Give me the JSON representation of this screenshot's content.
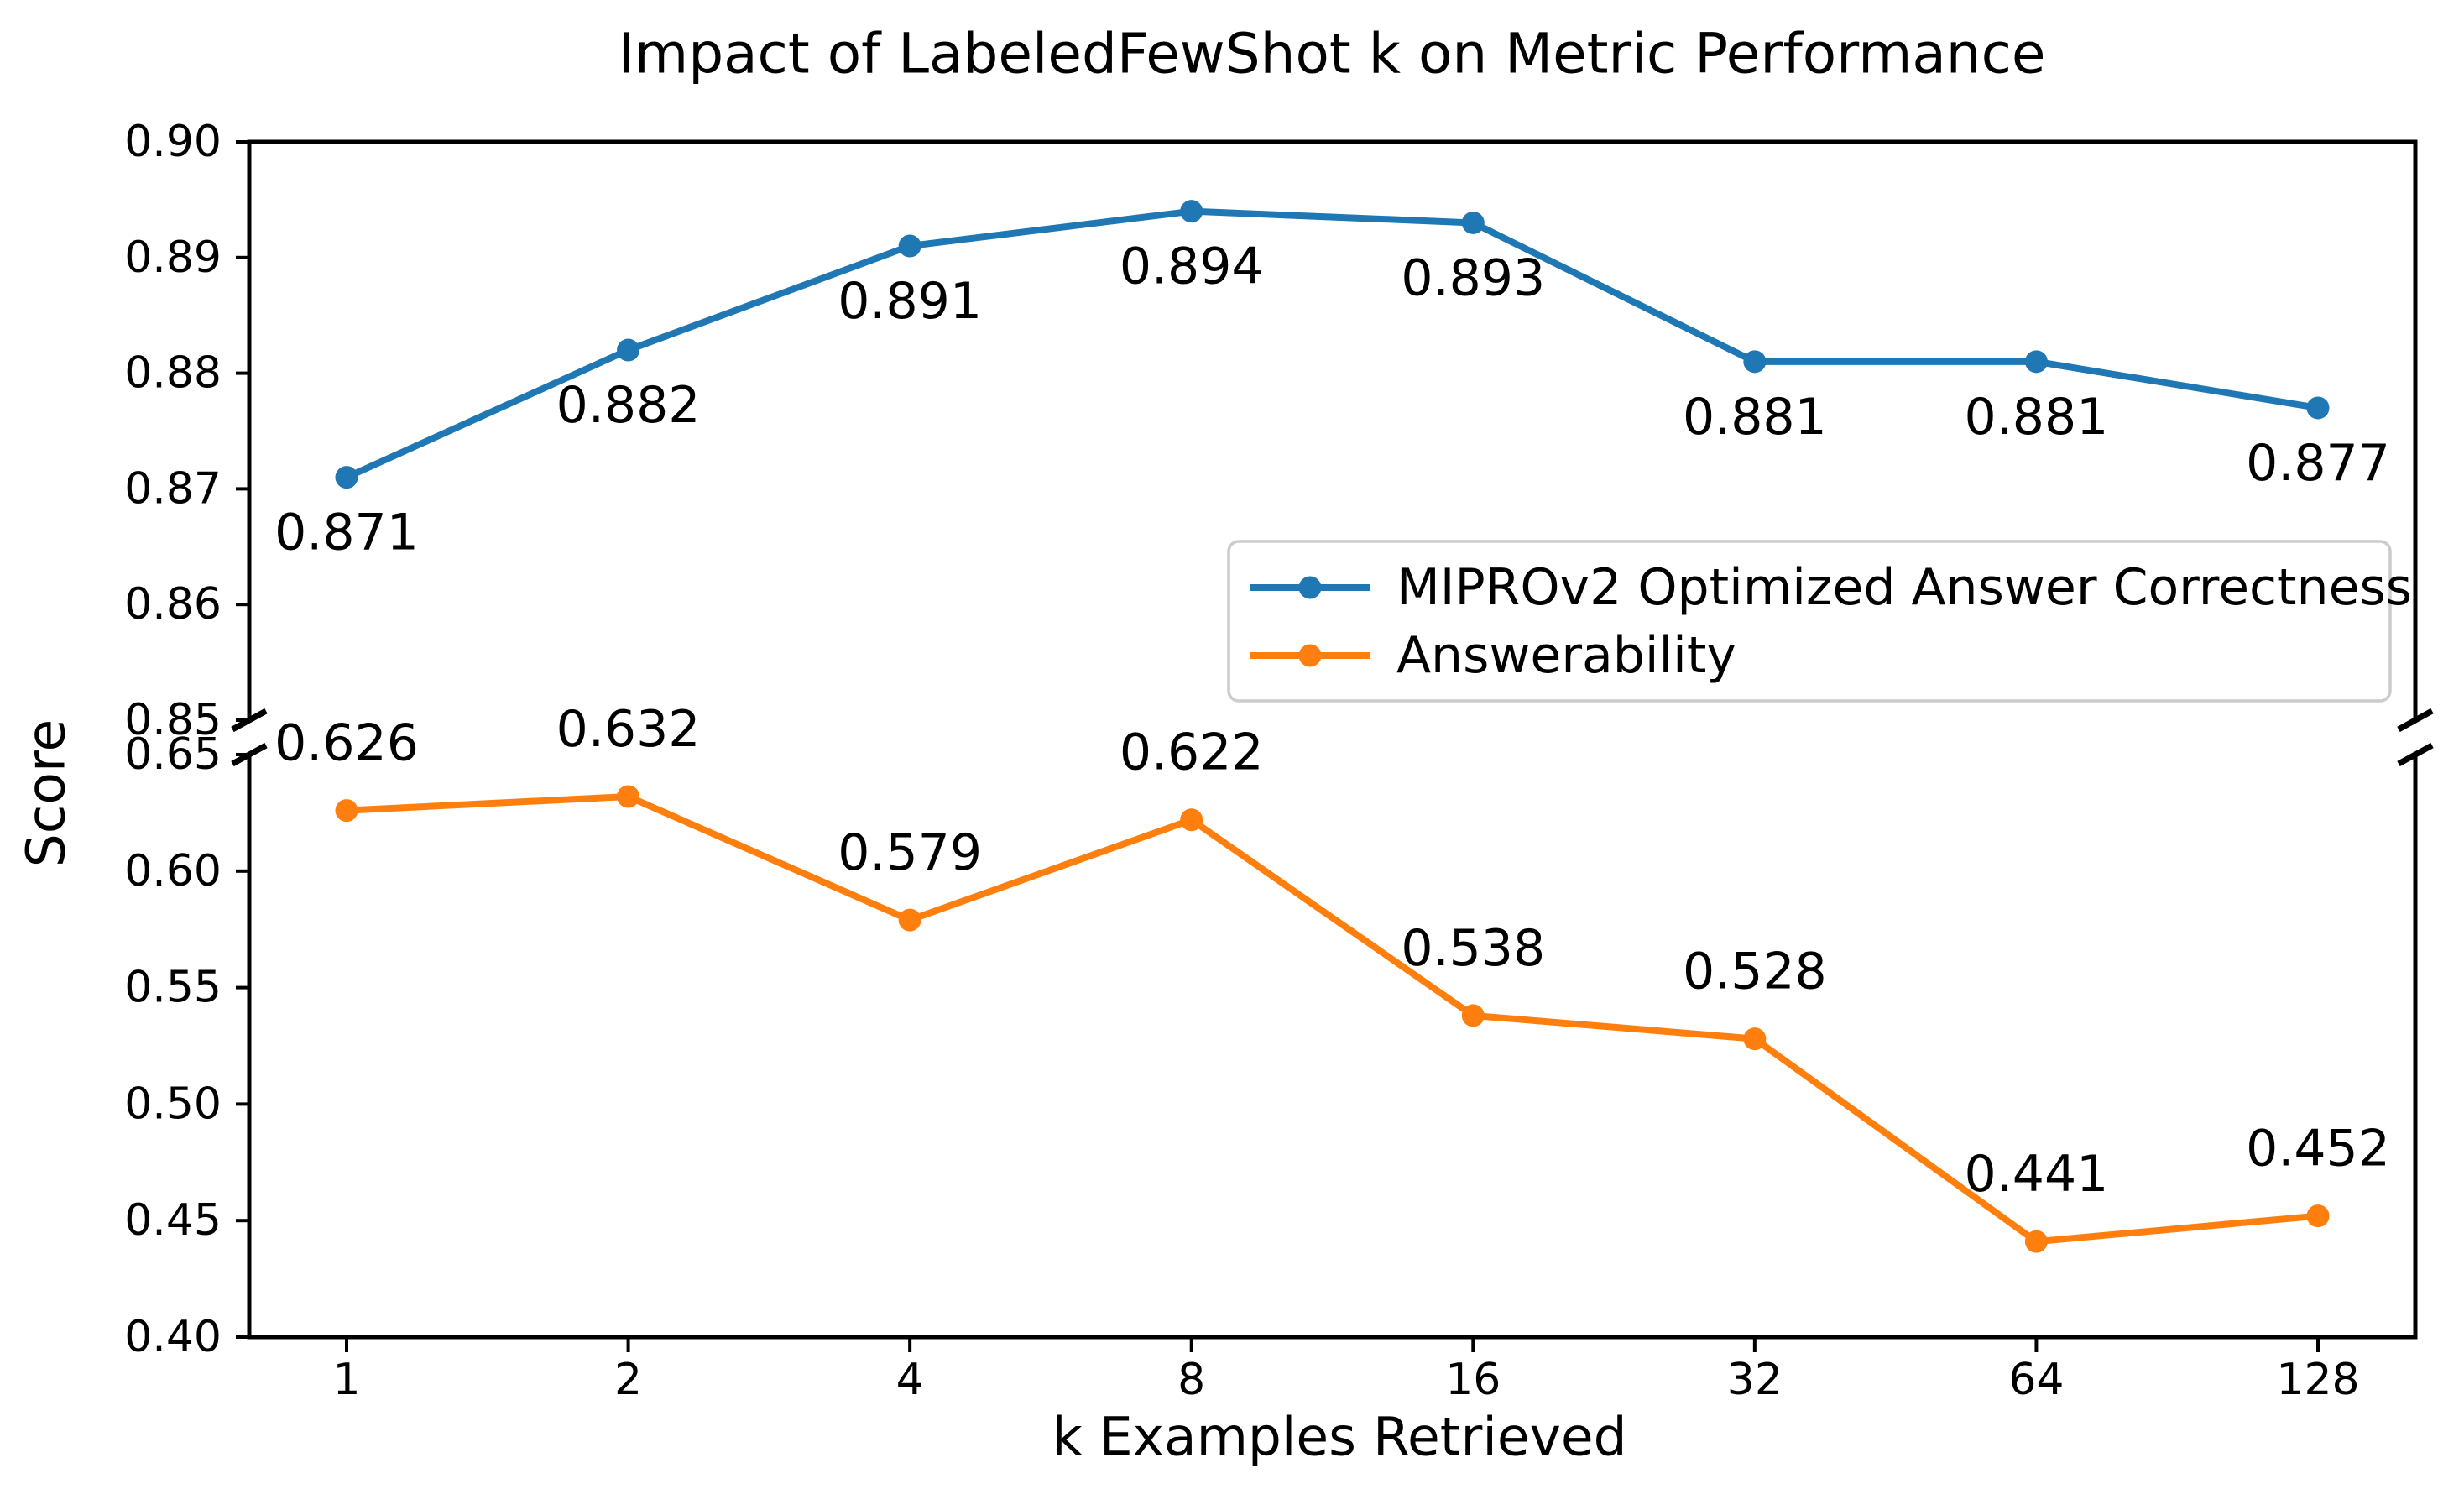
{
  "figure": {
    "title": "Impact of LabeledFewShot k on Metric Performance",
    "background": "#ffffff",
    "text_color": "#000000"
  },
  "chart_data": {
    "type": "line",
    "title": "Impact of LabeledFewShot k on Metric Performance",
    "xlabel": "k Examples Retrieved",
    "ylabel": "Score",
    "categories": [
      "1",
      "2",
      "4",
      "8",
      "16",
      "32",
      "64",
      "128"
    ],
    "broken_y_axis": true,
    "grid": false,
    "series": [
      {
        "name": "MIPROv2 Optimized Answer Correctness",
        "color": "#1f77b4",
        "marker": "circle-icon",
        "segment": "top",
        "value_label_position": "below",
        "values": [
          0.871,
          0.882,
          0.891,
          0.894,
          0.893,
          0.881,
          0.881,
          0.877
        ],
        "value_labels": [
          "0.871",
          "0.882",
          "0.891",
          "0.894",
          "0.893",
          "0.881",
          "0.881",
          "0.877"
        ]
      },
      {
        "name": "Answerability",
        "color": "#ff7f0e",
        "marker": "circle-icon",
        "segment": "bottom",
        "value_label_position": "above",
        "values": [
          0.626,
          0.632,
          0.579,
          0.622,
          0.538,
          0.528,
          0.441,
          0.452
        ],
        "value_labels": [
          "0.626",
          "0.632",
          "0.579",
          "0.622",
          "0.538",
          "0.528",
          "0.441",
          "0.452"
        ]
      }
    ],
    "y_segments": {
      "top": {
        "min": 0.85,
        "max": 0.9,
        "ticks": [
          0.9,
          0.89,
          0.88,
          0.87,
          0.86,
          0.85
        ],
        "tick_labels": [
          "0.90",
          "0.89",
          "0.88",
          "0.87",
          "0.86",
          "0.85"
        ]
      },
      "bottom": {
        "min": 0.4,
        "max": 0.65,
        "ticks": [
          0.65,
          0.6,
          0.55,
          0.5,
          0.45,
          0.4
        ],
        "tick_labels": [
          "0.65",
          "0.60",
          "0.55",
          "0.50",
          "0.45",
          "0.40"
        ]
      }
    },
    "legend": {
      "position": "center-right",
      "entries": [
        "MIPROv2 Optimized Answer Correctness",
        "Answerability"
      ]
    },
    "axis_color": "#000000",
    "legend_border_color": "#cccccc"
  }
}
